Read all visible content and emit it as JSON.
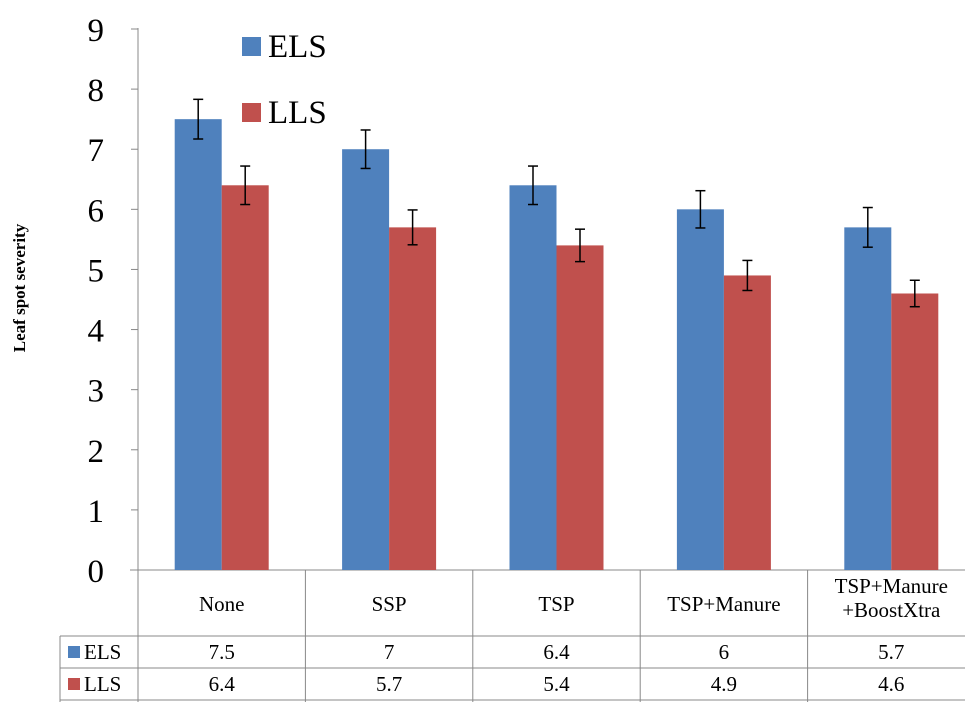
{
  "chart_data": {
    "type": "bar",
    "categories": [
      "None",
      "SSP",
      "TSP",
      "TSP+Manure",
      "TSP+Manure +BoostXtra"
    ],
    "category_lines": [
      [
        "None"
      ],
      [
        "SSP"
      ],
      [
        "TSP"
      ],
      [
        "TSP+Manure"
      ],
      [
        "TSP+Manure",
        "+BoostXtra"
      ]
    ],
    "series": [
      {
        "name": "ELS",
        "values": [
          7.5,
          7,
          6.4,
          6,
          5.7
        ],
        "errors": [
          0.33,
          0.32,
          0.32,
          0.31,
          0.33
        ],
        "color": "#4f81bd"
      },
      {
        "name": "LLS",
        "values": [
          6.4,
          5.7,
          5.4,
          4.9,
          4.6
        ],
        "errors": [
          0.32,
          0.29,
          0.27,
          0.25,
          0.22
        ],
        "color": "#c0504d"
      }
    ],
    "table_values": [
      [
        "7.5",
        "7",
        "6.4",
        "6",
        "5.7"
      ],
      [
        "6.4",
        "5.7",
        "5.4",
        "4.9",
        "4.6"
      ]
    ],
    "ylabel": "Leaf spot severity",
    "ylim": [
      0,
      9
    ],
    "yticks": [
      "0",
      "1",
      "2",
      "3",
      "4",
      "5",
      "6",
      "7",
      "8",
      "9"
    ],
    "grid": false,
    "legend_position": "top-left",
    "data_table": true
  }
}
